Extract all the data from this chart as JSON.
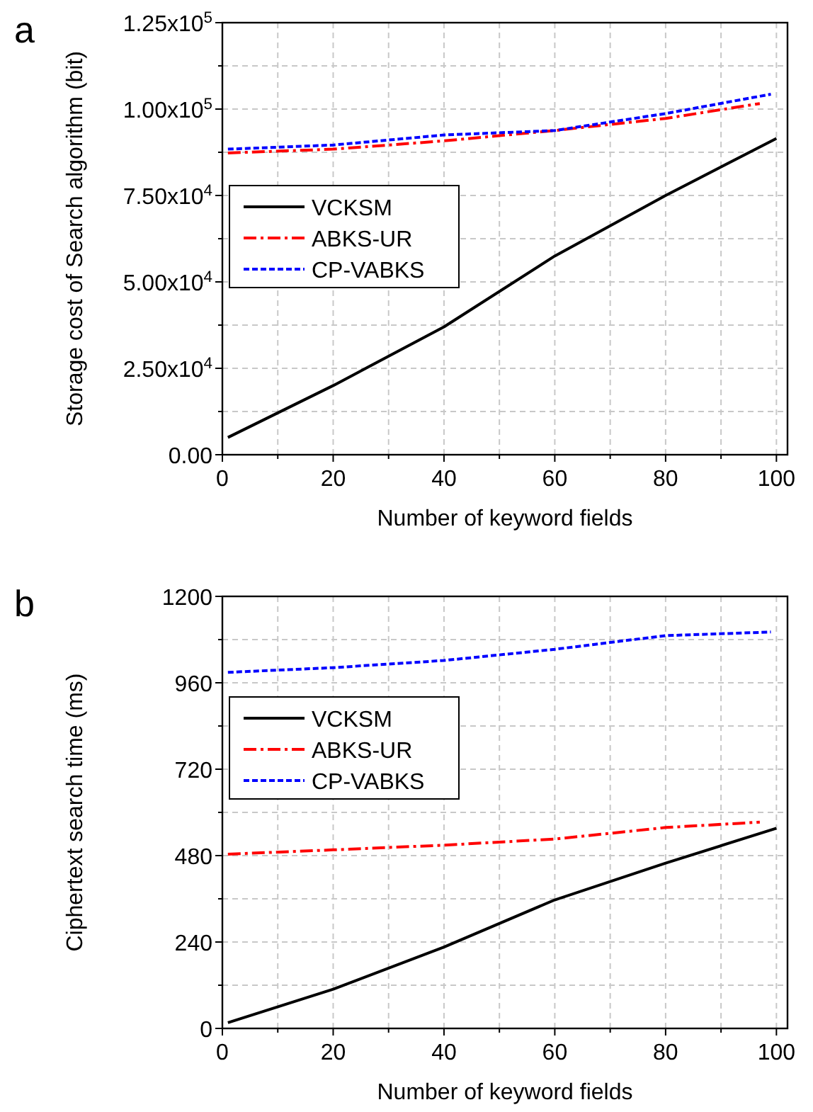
{
  "chart_data": [
    {
      "type": "line",
      "title": "a",
      "xlabel": "Number of keyword fields",
      "ylabel": "Storage cost of Search algorithm (bit)",
      "xlim": [
        0,
        102
      ],
      "ylim": [
        0,
        125000
      ],
      "xticks": [
        0,
        {
          "value": 10,
          "label": null
        },
        20,
        {
          "value": 30,
          "label": null
        },
        40,
        {
          "value": 50,
          "label": null
        },
        60,
        {
          "value": 70,
          "label": null
        },
        80,
        {
          "value": 90,
          "label": null
        },
        100
      ],
      "yticks": [
        {
          "value": 0,
          "label": "0.00"
        },
        {
          "value": 12500,
          "label": null
        },
        {
          "value": 25000,
          "label": "2.50x10$^{4}$"
        },
        {
          "value": 37500,
          "label": null
        },
        {
          "value": 50000,
          "label": "5.00x10$^{4}$"
        },
        {
          "value": 62500,
          "label": null
        },
        {
          "value": 75000,
          "label": "7.50x10$^{4}$"
        },
        {
          "value": 87500,
          "label": null
        },
        {
          "value": 100000,
          "label": "1.00x10$^{5}$"
        },
        {
          "value": 112500,
          "label": null
        },
        {
          "value": 125000,
          "label": "1.25x10$^{5}$"
        }
      ],
      "grid": true,
      "legend": "left",
      "marker": "none",
      "series": [
        {
          "name": "VCKSM",
          "color": "#000000",
          "line_style": "solid",
          "x": [
            1,
            20,
            40,
            60,
            80,
            100
          ],
          "values": [
            5000,
            20000,
            37000,
            57500,
            75000,
            91500
          ]
        },
        {
          "name": "ABKS-UR",
          "color": "#ff0000",
          "line_style": "dashed",
          "x": [
            1,
            20,
            40,
            60,
            80,
            97
          ],
          "values": [
            87300,
            88400,
            90800,
            93800,
            97300,
            101600
          ]
        },
        {
          "name": "CP-VABKS",
          "color": "#0000ff",
          "line_style": "dotted",
          "x": [
            1,
            20,
            40,
            60,
            80,
            99
          ],
          "values": [
            88400,
            89600,
            92500,
            93800,
            98700,
            104300
          ]
        }
      ]
    },
    {
      "type": "line",
      "title": "b",
      "xlabel": "Number of keyword fields",
      "ylabel": "Ciphertext search time (ms)",
      "xlim": [
        0,
        102
      ],
      "ylim": [
        0,
        1200
      ],
      "xticks": [
        0,
        {
          "value": 10,
          "label": null
        },
        20,
        {
          "value": 30,
          "label": null
        },
        40,
        {
          "value": 50,
          "label": null
        },
        60,
        {
          "value": 70,
          "label": null
        },
        80,
        {
          "value": 90,
          "label": null
        },
        100
      ],
      "yticks": [
        0,
        {
          "value": 120,
          "label": null
        },
        240,
        {
          "value": 360,
          "label": null
        },
        480,
        {
          "value": 600,
          "label": null
        },
        720,
        {
          "value": 840,
          "label": null
        },
        960,
        {
          "value": 1080,
          "label": null
        },
        1200
      ],
      "grid": true,
      "legend": "top left",
      "marker": "none",
      "series": [
        {
          "name": "VCKSM",
          "color": "#000000",
          "line_style": "solid",
          "x": [
            1,
            20,
            40,
            60,
            80,
            100
          ],
          "values": [
            16,
            109,
            226,
            357,
            459,
            556
          ]
        },
        {
          "name": "ABKS-UR",
          "color": "#ff0000",
          "line_style": "dashed",
          "x": [
            1,
            20,
            40,
            60,
            80,
            97
          ],
          "values": [
            484,
            496,
            509,
            526,
            558,
            573
          ]
        },
        {
          "name": "CP-VABKS",
          "color": "#0000ff",
          "line_style": "dotted",
          "x": [
            1,
            20,
            40,
            60,
            70,
            80,
            99
          ],
          "values": [
            989,
            1002,
            1022,
            1053,
            1072,
            1091,
            1101
          ]
        }
      ]
    }
  ]
}
